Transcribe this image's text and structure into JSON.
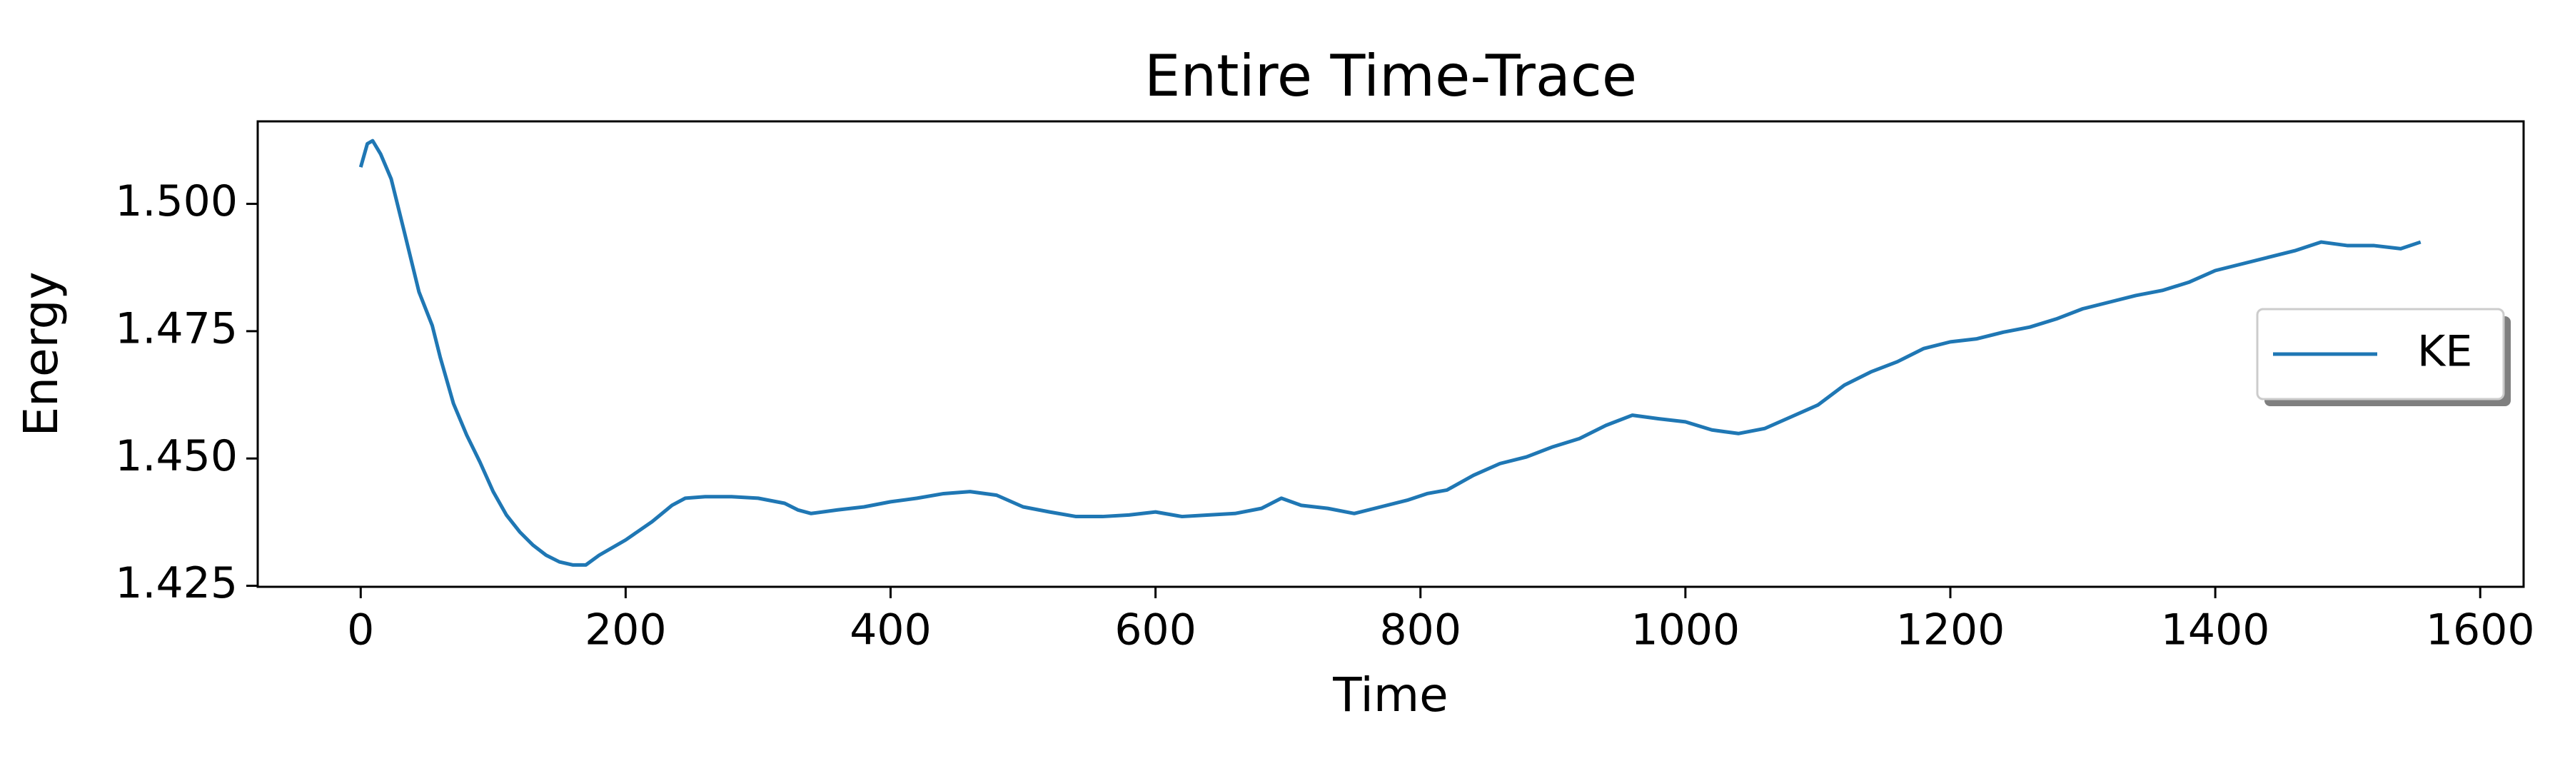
{
  "chart_data": {
    "type": "line",
    "title": "Entire Time-Trace",
    "xlabel": "Time",
    "ylabel": "Energy",
    "x": [
      0,
      5,
      9,
      15,
      23,
      33,
      44,
      54,
      60,
      70,
      80,
      90,
      100,
      110,
      120,
      130,
      140,
      150,
      160,
      170,
      180,
      200,
      220,
      235,
      245,
      260,
      280,
      300,
      320,
      330,
      340,
      360,
      380,
      400,
      420,
      440,
      460,
      480,
      500,
      520,
      540,
      560,
      580,
      600,
      620,
      640,
      660,
      680,
      695,
      710,
      730,
      750,
      770,
      790,
      805,
      820,
      840,
      860,
      880,
      900,
      920,
      940,
      960,
      980,
      1000,
      1020,
      1040,
      1060,
      1080,
      1100,
      1120,
      1140,
      1160,
      1180,
      1200,
      1220,
      1240,
      1260,
      1280,
      1300,
      1320,
      1340,
      1360,
      1380,
      1400,
      1420,
      1440,
      1460,
      1480,
      1500,
      1520,
      1540,
      1555
    ],
    "series": [
      {
        "name": "KE",
        "color": "#1f77b4",
        "values": [
          1.5072,
          1.5118,
          1.5124,
          1.5098,
          1.5049,
          1.4944,
          1.4827,
          1.4761,
          1.4699,
          1.4608,
          1.4546,
          1.4493,
          1.4435,
          1.4389,
          1.4356,
          1.433,
          1.431,
          1.4297,
          1.4291,
          1.4291,
          1.431,
          1.434,
          1.4376,
          1.4408,
          1.4422,
          1.4425,
          1.4425,
          1.4422,
          1.4412,
          1.4399,
          1.4392,
          1.4399,
          1.4405,
          1.4415,
          1.4422,
          1.4431,
          1.4435,
          1.4428,
          1.4405,
          1.4395,
          1.4386,
          1.4386,
          1.4389,
          1.4395,
          1.4386,
          1.4389,
          1.4392,
          1.4402,
          1.4422,
          1.4408,
          1.4402,
          1.4392,
          1.4405,
          1.4418,
          1.4431,
          1.4438,
          1.4467,
          1.449,
          1.4503,
          1.4523,
          1.4539,
          1.4565,
          1.4585,
          1.4578,
          1.4572,
          1.4556,
          1.4549,
          1.4559,
          1.4582,
          1.4605,
          1.4644,
          1.467,
          1.469,
          1.4716,
          1.4729,
          1.4735,
          1.4748,
          1.4758,
          1.4774,
          1.4794,
          1.4807,
          1.482,
          1.483,
          1.4846,
          1.4869,
          1.4882,
          1.4895,
          1.4908,
          1.4925,
          1.4918,
          1.4918,
          1.4912,
          1.4925
        ]
      }
    ],
    "xlim": [
      -77.75,
      1632.75
    ],
    "xticks": [
      0,
      200,
      400,
      600,
      800,
      1000,
      1200,
      1400,
      1600
    ],
    "ylim": [
      1.4248,
      1.5162
    ],
    "yticks": [
      1.425,
      {
        "value": 1.45,
        "label": "1.450"
      },
      1.475,
      {
        "value": 1.5,
        "label": "1.500"
      }
    ],
    "legend": "center right"
  }
}
